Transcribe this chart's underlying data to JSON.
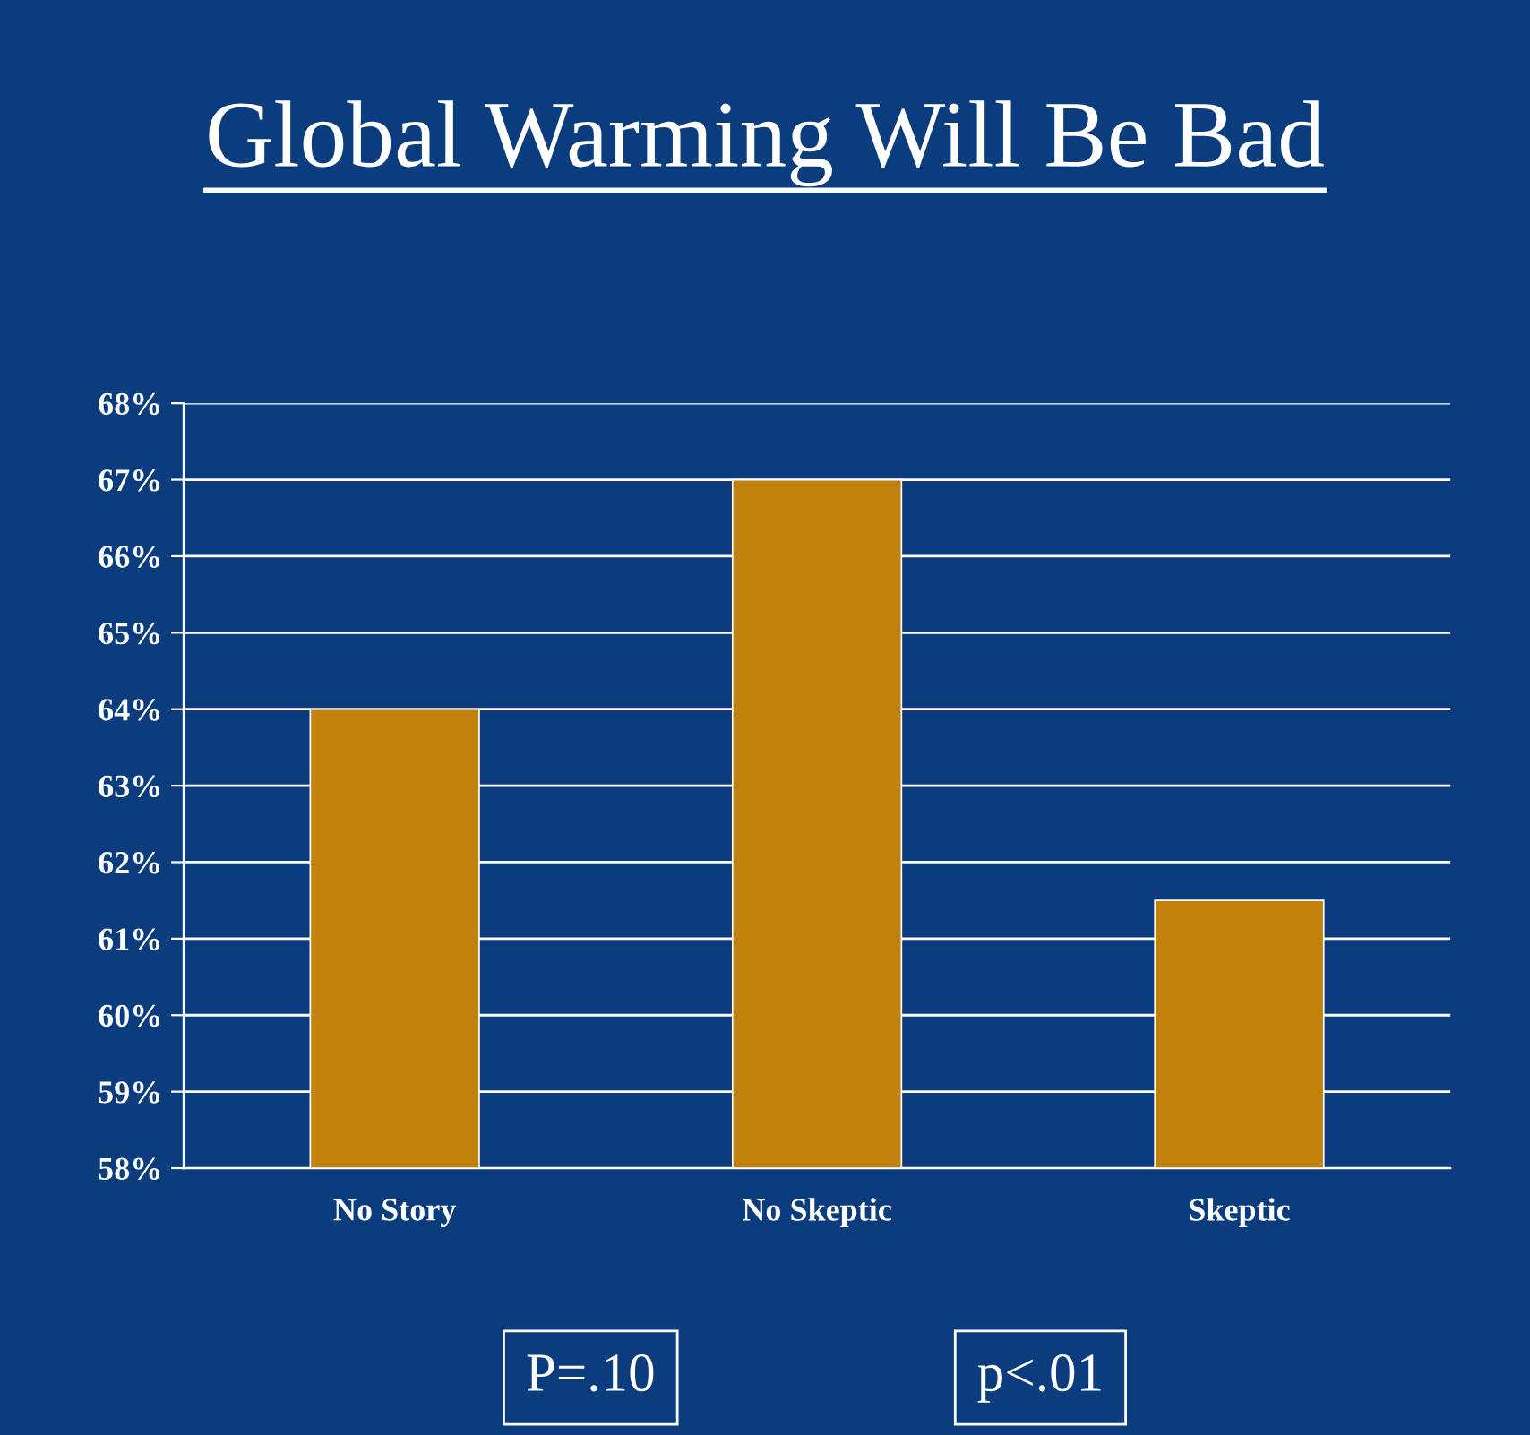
{
  "chart_data": {
    "type": "bar",
    "title": "Global Warming Will Be Bad",
    "categories": [
      "No Story",
      "No Skeptic",
      "Skeptic"
    ],
    "values": [
      64,
      67,
      61.5
    ],
    "color": "#c0820c",
    "ylim": [
      58,
      68
    ],
    "yticks": [
      {
        "value": 58,
        "label": "58%"
      },
      {
        "value": 59,
        "label": "59%"
      },
      {
        "value": 60,
        "label": "60%"
      },
      {
        "value": 61,
        "label": "61%"
      },
      {
        "value": 62,
        "label": "62%"
      },
      {
        "value": 63,
        "label": "63%"
      },
      {
        "value": 64,
        "label": "64%"
      },
      {
        "value": 65,
        "label": "65%"
      },
      {
        "value": 66,
        "label": "66%"
      },
      {
        "value": 67,
        "label": "67%"
      },
      {
        "value": 68,
        "label": "68%"
      }
    ],
    "grid": "y",
    "annotations": [
      "P=.10",
      "p<.01"
    ]
  }
}
